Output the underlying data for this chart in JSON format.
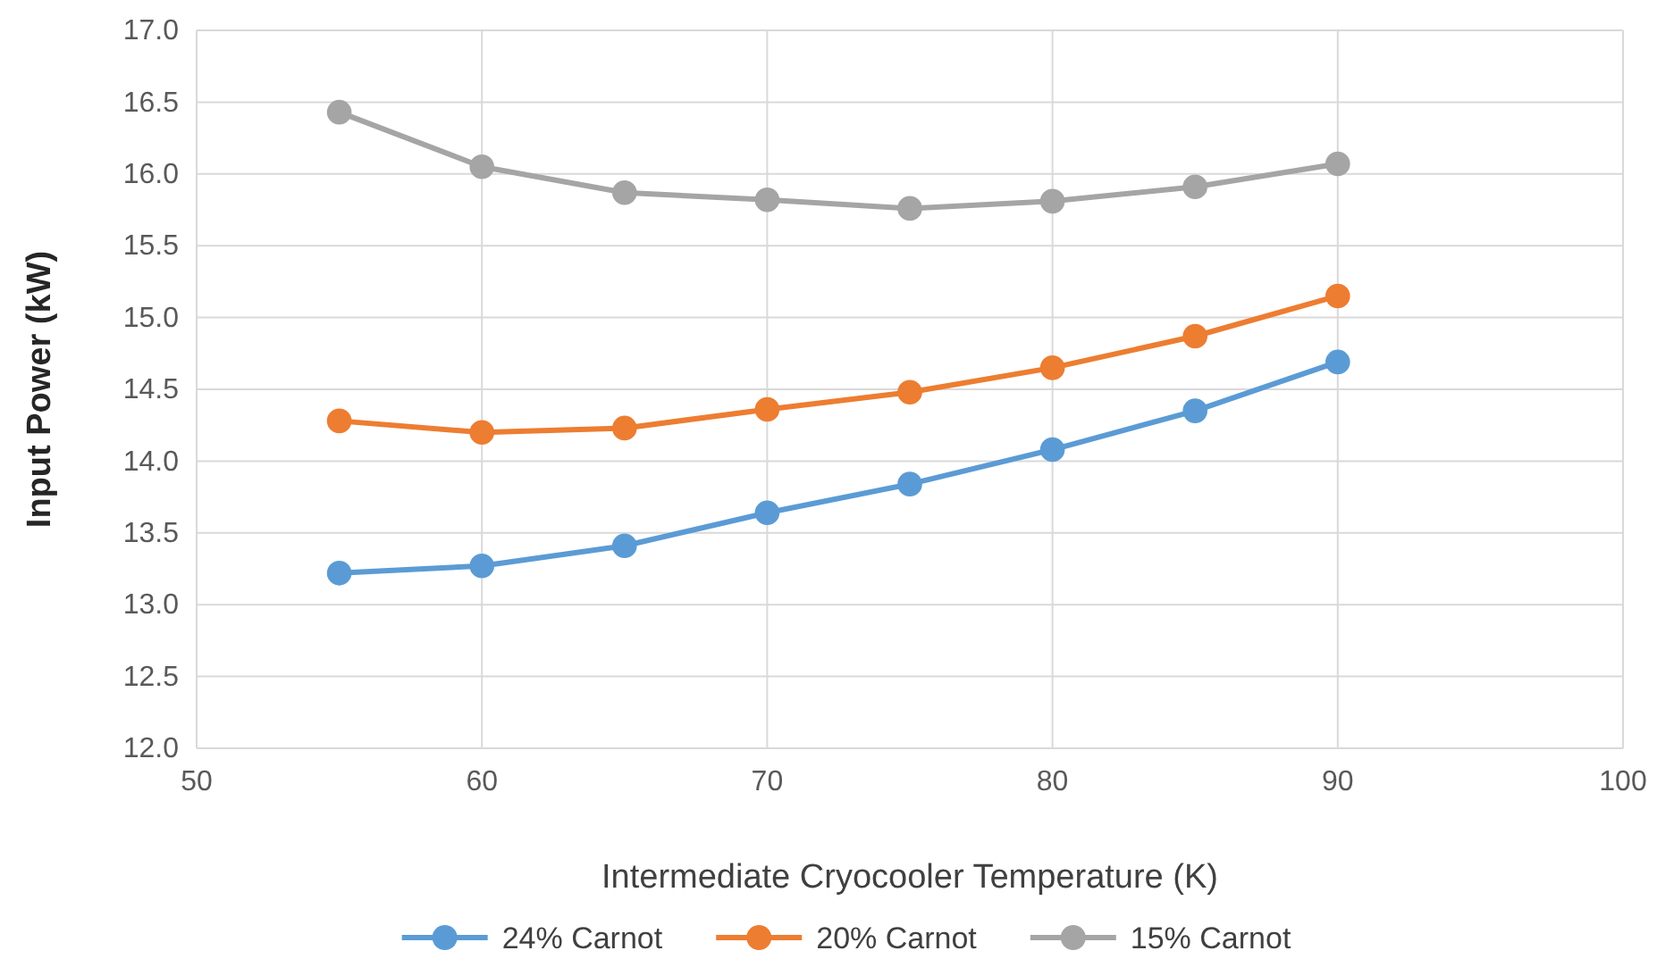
{
  "chart_data": {
    "type": "line",
    "xlabel": "Intermediate Cryocooler Temperature (K)",
    "ylabel": "Input Power (kW)",
    "x": [
      55,
      60,
      65,
      70,
      75,
      80,
      85,
      90
    ],
    "series": [
      {
        "name": "24% Carnot",
        "color": "#5b9bd5",
        "values": [
          13.22,
          13.27,
          13.41,
          13.64,
          13.84,
          14.08,
          14.35,
          14.69
        ]
      },
      {
        "name": "20% Carnot",
        "color": "#ed7d31",
        "values": [
          14.28,
          14.2,
          14.23,
          14.36,
          14.48,
          14.65,
          14.87,
          15.15
        ]
      },
      {
        "name": "15% Carnot",
        "color": "#a5a5a5",
        "values": [
          16.43,
          16.05,
          15.87,
          15.82,
          15.76,
          15.81,
          15.91,
          16.07
        ]
      }
    ],
    "xlim": [
      50,
      100
    ],
    "xticks": [
      50,
      60,
      70,
      80,
      90,
      100
    ],
    "ylim": [
      12,
      17
    ],
    "yticks": [
      {
        "value": 12,
        "label": "12.0"
      },
      {
        "value": 12.5,
        "label": "12.5"
      },
      {
        "value": 13,
        "label": "13.0"
      },
      {
        "value": 13.5,
        "label": "13.5"
      },
      {
        "value": 14,
        "label": "14.0"
      },
      {
        "value": 14.5,
        "label": "14.5"
      },
      {
        "value": 15,
        "label": "15.0"
      },
      {
        "value": 15.5,
        "label": "15.5"
      },
      {
        "value": 16,
        "label": "16.0"
      },
      {
        "value": 16.5,
        "label": "16.5"
      },
      {
        "value": 17,
        "label": "17.0"
      }
    ],
    "grid": true,
    "legend": "bottom",
    "marker": "circle",
    "line_style": "solid"
  }
}
